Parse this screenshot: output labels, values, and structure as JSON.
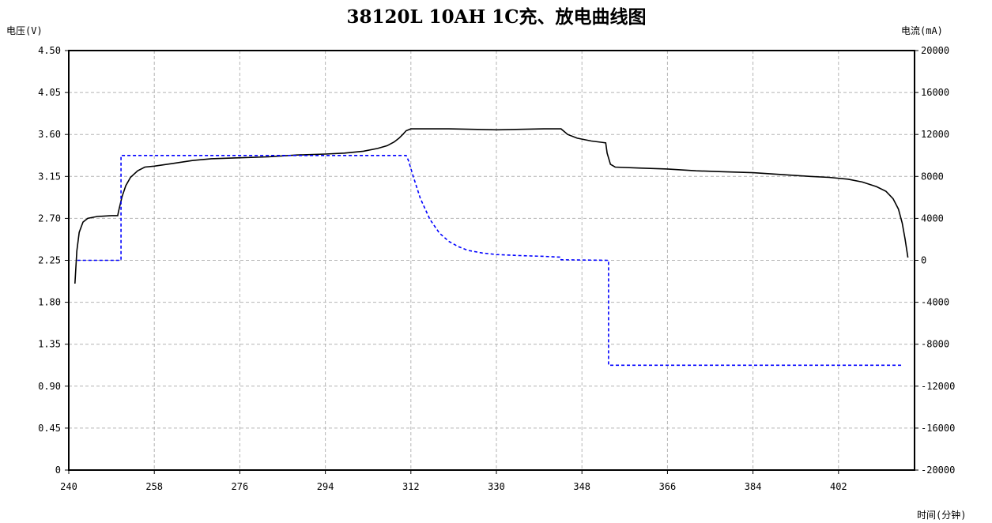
{
  "chart_data": {
    "type": "line",
    "title": "38120L 10AH 1C充、放电曲线图",
    "ylabel_left": "电压(V)",
    "ylabel_right": "电流(mA)",
    "xlabel": "时间(分钟)",
    "xlim": [
      240,
      418
    ],
    "ylim_left": [
      0,
      4.5
    ],
    "ylim_right": [
      -20000,
      20000
    ],
    "x_ticks": [
      "240",
      "258",
      "276",
      "294",
      "312",
      "330",
      "348",
      "366",
      "384",
      "402"
    ],
    "y_left_ticks": [
      "0",
      "0.45",
      "0.90",
      "1.35",
      "1.80",
      "2.25",
      "2.70",
      "3.15",
      "3.60",
      "4.05",
      "4.50"
    ],
    "y_right_ticks": [
      "-20000",
      "-16000",
      "-12000",
      "-8000",
      "-4000",
      "0",
      "4000",
      "8000",
      "12000",
      "16000",
      "20000"
    ],
    "grid": true,
    "series": [
      {
        "axis": "left",
        "color": "#000000",
        "dash": "solid",
        "points": [
          [
            241.3,
            2.0
          ],
          [
            241.7,
            2.35
          ],
          [
            242.2,
            2.55
          ],
          [
            243.0,
            2.66
          ],
          [
            244.0,
            2.7
          ],
          [
            246.0,
            2.72
          ],
          [
            249.0,
            2.73
          ],
          [
            250.3,
            2.73
          ],
          [
            250.5,
            2.78
          ],
          [
            251.2,
            2.93
          ],
          [
            252.0,
            3.05
          ],
          [
            253.0,
            3.14
          ],
          [
            254.5,
            3.21
          ],
          [
            256.0,
            3.25
          ],
          [
            258.0,
            3.26
          ],
          [
            262.0,
            3.29
          ],
          [
            266.0,
            3.32
          ],
          [
            270.0,
            3.34
          ],
          [
            276.0,
            3.35
          ],
          [
            282.0,
            3.36
          ],
          [
            288.0,
            3.38
          ],
          [
            294.0,
            3.39
          ],
          [
            298.0,
            3.4
          ],
          [
            302.0,
            3.42
          ],
          [
            305.0,
            3.45
          ],
          [
            307.0,
            3.48
          ],
          [
            308.5,
            3.52
          ],
          [
            309.5,
            3.56
          ],
          [
            310.3,
            3.6
          ],
          [
            311.0,
            3.64
          ],
          [
            312.0,
            3.66
          ],
          [
            320.0,
            3.66
          ],
          [
            330.0,
            3.65
          ],
          [
            340.0,
            3.66
          ],
          [
            343.6,
            3.66
          ],
          [
            345.0,
            3.6
          ],
          [
            347.0,
            3.56
          ],
          [
            350.0,
            3.53
          ],
          [
            353.0,
            3.51
          ],
          [
            353.3,
            3.4
          ],
          [
            354.0,
            3.28
          ],
          [
            355.0,
            3.25
          ],
          [
            360.0,
            3.24
          ],
          [
            366.0,
            3.23
          ],
          [
            372.0,
            3.21
          ],
          [
            378.0,
            3.2
          ],
          [
            384.0,
            3.19
          ],
          [
            390.0,
            3.17
          ],
          [
            396.0,
            3.15
          ],
          [
            400.0,
            3.14
          ],
          [
            404.0,
            3.12
          ],
          [
            407.0,
            3.09
          ],
          [
            410.0,
            3.04
          ],
          [
            412.0,
            2.99
          ],
          [
            413.5,
            2.91
          ],
          [
            414.6,
            2.8
          ],
          [
            415.4,
            2.65
          ],
          [
            416.0,
            2.48
          ],
          [
            416.6,
            2.28
          ]
        ]
      },
      {
        "axis": "right",
        "color": "#0000ff",
        "dash": "dashed",
        "points": [
          [
            241.8,
            0
          ],
          [
            251.0,
            0
          ],
          [
            251.0,
            10000
          ],
          [
            311.0,
            10000
          ],
          [
            311.5,
            9500
          ],
          [
            312.5,
            8000
          ],
          [
            314.0,
            5900
          ],
          [
            316.0,
            3900
          ],
          [
            318.0,
            2600
          ],
          [
            320.0,
            1800
          ],
          [
            322.0,
            1300
          ],
          [
            324.0,
            950
          ],
          [
            327.0,
            700
          ],
          [
            330.0,
            550
          ],
          [
            335.0,
            450
          ],
          [
            340.0,
            380
          ],
          [
            343.5,
            300
          ],
          [
            343.6,
            50
          ],
          [
            353.6,
            0
          ],
          [
            353.6,
            -10000
          ],
          [
            415.5,
            -10000
          ]
        ]
      }
    ]
  }
}
